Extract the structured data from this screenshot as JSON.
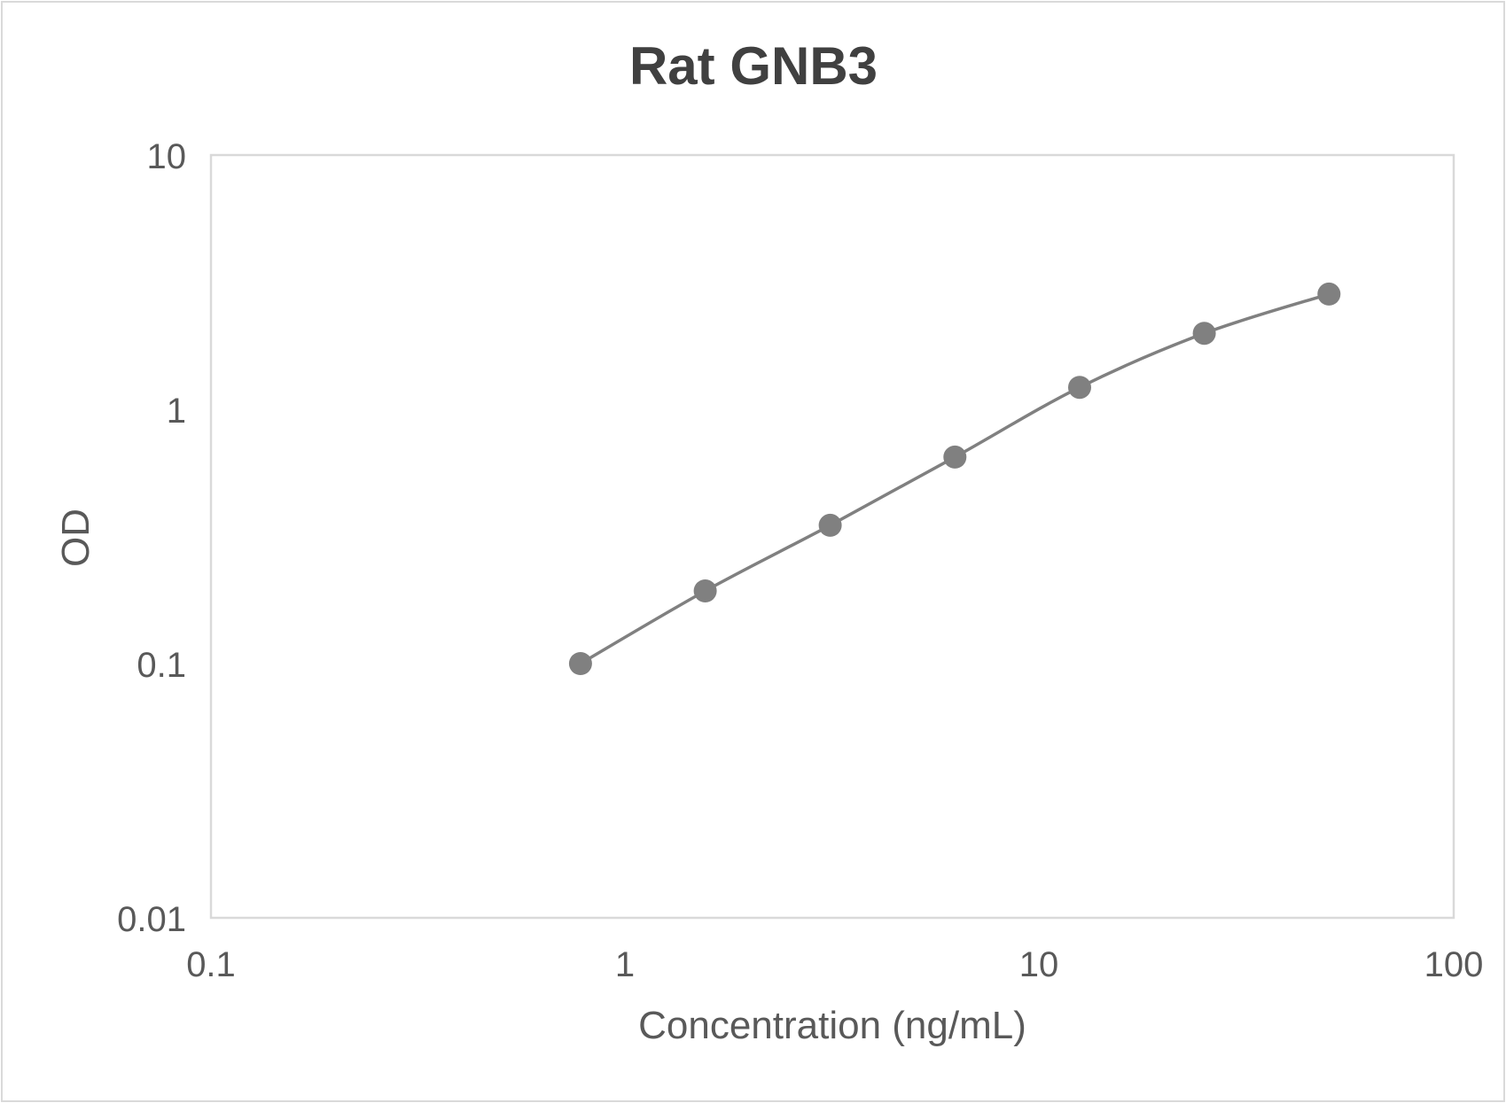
{
  "chart_data": {
    "type": "line",
    "title": "Rat GNB3",
    "xlabel": "Concentration (ng/mL)",
    "ylabel": "OD",
    "x_scale": "log",
    "y_scale": "log",
    "xlim": [
      0.1,
      100
    ],
    "ylim": [
      0.01,
      10
    ],
    "x_ticks": [
      "0.1",
      "1",
      "10",
      "100"
    ],
    "y_ticks": [
      "0.01",
      "0.1",
      "1",
      "10"
    ],
    "grid": false,
    "legend": null,
    "smoothed_line": true,
    "series": [
      {
        "name": "Rat GNB3",
        "color": "#808080",
        "marker": "circle",
        "x": [
          0.78,
          1.56,
          3.125,
          6.25,
          12.5,
          25,
          50
        ],
        "y": [
          0.1,
          0.193,
          0.35,
          0.649,
          1.22,
          1.99,
          2.84
        ]
      }
    ]
  },
  "colors": {
    "title": "#404040",
    "text": "#595959",
    "plot_border": "#d9d9d9",
    "series": "#808080"
  }
}
